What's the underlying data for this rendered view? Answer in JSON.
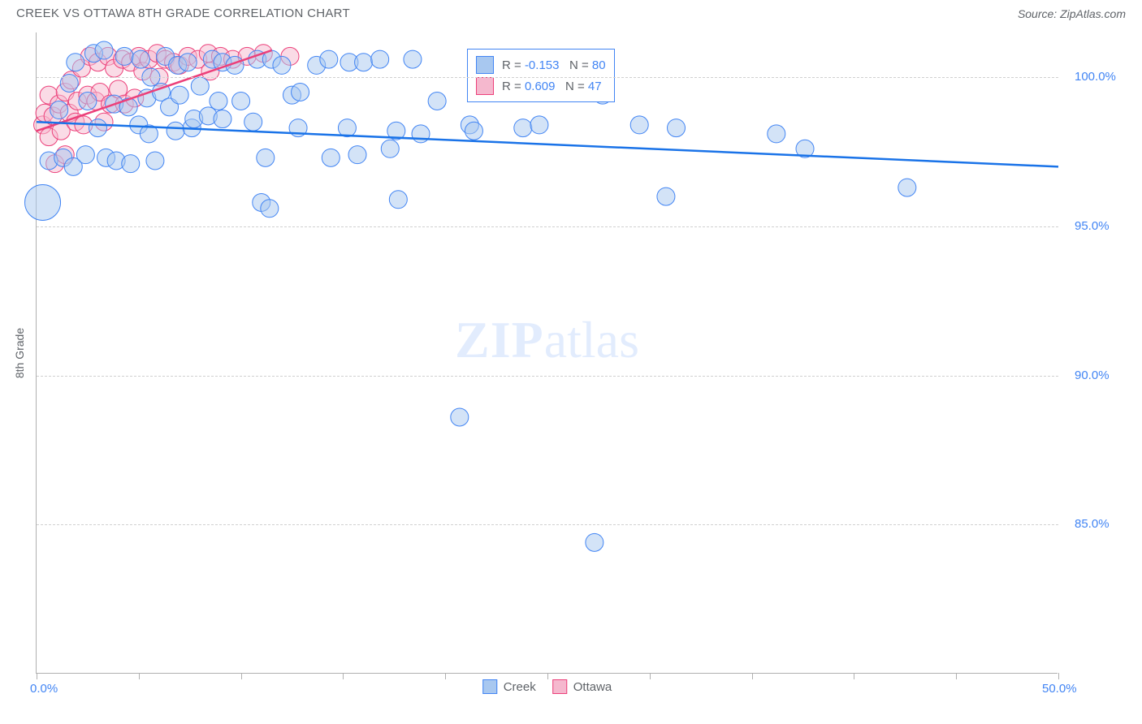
{
  "header": {
    "title": "CREEK VS OTTAWA 8TH GRADE CORRELATION CHART",
    "source": "Source: ZipAtlas.com"
  },
  "axes": {
    "y_label": "8th Grade",
    "y_min": 80.0,
    "y_max": 101.5,
    "y_ticks": [
      85.0,
      90.0,
      95.0,
      100.0
    ],
    "y_tick_labels": [
      "85.0%",
      "90.0%",
      "95.0%",
      "100.0%"
    ],
    "x_min": 0.0,
    "x_max": 50.0,
    "x_ticks": [
      0,
      5,
      10,
      15,
      20,
      25,
      30,
      35,
      40,
      45,
      50
    ],
    "x_tick_labels": {
      "0": "0.0%",
      "50": "50.0%"
    }
  },
  "legend_top": {
    "series": [
      {
        "fill": "#a8c8f0",
        "stroke": "#4285f4",
        "r_label": "R = ",
        "r_value": "-0.153",
        "n_label": "N = ",
        "n_value": "80"
      },
      {
        "fill": "#f5b8ce",
        "stroke": "#ec407a",
        "r_label": "R = ",
        "r_value": "0.609",
        "n_label": "N = ",
        "n_value": "47"
      }
    ]
  },
  "legend_bottom": {
    "items": [
      {
        "fill": "#a8c8f0",
        "stroke": "#4285f4",
        "label": "Creek"
      },
      {
        "fill": "#f5b8ce",
        "stroke": "#ec407a",
        "label": "Ottawa"
      }
    ]
  },
  "watermark": {
    "bold": "ZIP",
    "light": "atlas"
  },
  "styling": {
    "background": "#ffffff",
    "grid_color": "#d0d0d0",
    "axis_color": "#b0b0b0",
    "point_opacity": 0.5,
    "trend_line_width": 2.5
  },
  "series": {
    "creek": {
      "color_fill": "#a8c8f0",
      "color_stroke": "#4285f4",
      "trend": {
        "x1": 0.0,
        "y1": 98.5,
        "x2": 50.0,
        "y2": 97.0,
        "color": "#1a73e8"
      },
      "default_radius": 11,
      "points": [
        {
          "x": 0.3,
          "y": 95.8,
          "r": 22
        },
        {
          "x": 0.6,
          "y": 97.2
        },
        {
          "x": 1.1,
          "y": 98.9
        },
        {
          "x": 1.3,
          "y": 97.3
        },
        {
          "x": 1.6,
          "y": 99.8
        },
        {
          "x": 1.8,
          "y": 97.0
        },
        {
          "x": 1.9,
          "y": 100.5
        },
        {
          "x": 2.4,
          "y": 97.4
        },
        {
          "x": 2.5,
          "y": 99.2
        },
        {
          "x": 2.8,
          "y": 100.8
        },
        {
          "x": 3.0,
          "y": 98.3
        },
        {
          "x": 3.3,
          "y": 100.9
        },
        {
          "x": 3.4,
          "y": 97.3
        },
        {
          "x": 3.8,
          "y": 99.1
        },
        {
          "x": 3.9,
          "y": 97.2
        },
        {
          "x": 4.3,
          "y": 100.7
        },
        {
          "x": 4.5,
          "y": 99.0
        },
        {
          "x": 4.6,
          "y": 97.1
        },
        {
          "x": 5.0,
          "y": 98.4
        },
        {
          "x": 5.1,
          "y": 100.6
        },
        {
          "x": 5.4,
          "y": 99.3
        },
        {
          "x": 5.5,
          "y": 98.1
        },
        {
          "x": 5.6,
          "y": 100.0
        },
        {
          "x": 5.8,
          "y": 97.2
        },
        {
          "x": 6.1,
          "y": 99.5
        },
        {
          "x": 6.3,
          "y": 100.7
        },
        {
          "x": 6.5,
          "y": 99.0
        },
        {
          "x": 6.8,
          "y": 98.2
        },
        {
          "x": 6.9,
          "y": 100.4
        },
        {
          "x": 7.0,
          "y": 99.4
        },
        {
          "x": 7.4,
          "y": 100.5
        },
        {
          "x": 7.6,
          "y": 98.3
        },
        {
          "x": 7.7,
          "y": 98.6
        },
        {
          "x": 8.0,
          "y": 99.7
        },
        {
          "x": 8.4,
          "y": 98.7
        },
        {
          "x": 8.6,
          "y": 100.6
        },
        {
          "x": 8.9,
          "y": 99.2
        },
        {
          "x": 9.1,
          "y": 98.6
        },
        {
          "x": 9.1,
          "y": 100.5
        },
        {
          "x": 9.7,
          "y": 100.4
        },
        {
          "x": 10.0,
          "y": 99.2
        },
        {
          "x": 10.6,
          "y": 98.5
        },
        {
          "x": 10.8,
          "y": 100.6
        },
        {
          "x": 11.0,
          "y": 95.8
        },
        {
          "x": 11.2,
          "y": 97.3
        },
        {
          "x": 11.4,
          "y": 95.6
        },
        {
          "x": 11.5,
          "y": 100.6
        },
        {
          "x": 12.0,
          "y": 100.4
        },
        {
          "x": 12.5,
          "y": 99.4
        },
        {
          "x": 12.8,
          "y": 98.3
        },
        {
          "x": 12.9,
          "y": 99.5
        },
        {
          "x": 13.7,
          "y": 100.4
        },
        {
          "x": 14.3,
          "y": 100.6
        },
        {
          "x": 14.4,
          "y": 97.3
        },
        {
          "x": 15.2,
          "y": 98.3
        },
        {
          "x": 15.3,
          "y": 100.5
        },
        {
          "x": 15.7,
          "y": 97.4
        },
        {
          "x": 16.0,
          "y": 100.5
        },
        {
          "x": 16.8,
          "y": 100.6
        },
        {
          "x": 17.3,
          "y": 97.6
        },
        {
          "x": 17.6,
          "y": 98.2
        },
        {
          "x": 17.7,
          "y": 95.9
        },
        {
          "x": 18.4,
          "y": 100.6
        },
        {
          "x": 18.8,
          "y": 98.1
        },
        {
          "x": 19.6,
          "y": 99.2
        },
        {
          "x": 20.7,
          "y": 88.6
        },
        {
          "x": 21.2,
          "y": 98.4
        },
        {
          "x": 21.4,
          "y": 98.2
        },
        {
          "x": 22.7,
          "y": 100.4
        },
        {
          "x": 23.8,
          "y": 98.3
        },
        {
          "x": 24.6,
          "y": 98.4
        },
        {
          "x": 25.8,
          "y": 100.5
        },
        {
          "x": 27.3,
          "y": 84.4
        },
        {
          "x": 27.7,
          "y": 99.4
        },
        {
          "x": 29.5,
          "y": 98.4
        },
        {
          "x": 30.8,
          "y": 96.0
        },
        {
          "x": 31.3,
          "y": 98.3
        },
        {
          "x": 36.2,
          "y": 98.1
        },
        {
          "x": 37.6,
          "y": 97.6
        },
        {
          "x": 42.6,
          "y": 96.3
        }
      ]
    },
    "ottawa": {
      "color_fill": "#f5b8ce",
      "color_stroke": "#ec407a",
      "trend": {
        "x1": 0.0,
        "y1": 98.2,
        "x2": 11.5,
        "y2": 100.9,
        "color": "#ec407a"
      },
      "default_radius": 11,
      "points": [
        {
          "x": 0.3,
          "y": 98.4
        },
        {
          "x": 0.4,
          "y": 98.8
        },
        {
          "x": 0.6,
          "y": 98.0
        },
        {
          "x": 0.6,
          "y": 99.4
        },
        {
          "x": 0.8,
          "y": 98.7
        },
        {
          "x": 0.9,
          "y": 97.1
        },
        {
          "x": 1.1,
          "y": 99.1
        },
        {
          "x": 1.2,
          "y": 98.2
        },
        {
          "x": 1.4,
          "y": 99.5
        },
        {
          "x": 1.4,
          "y": 97.4
        },
        {
          "x": 1.6,
          "y": 98.8
        },
        {
          "x": 1.7,
          "y": 99.9
        },
        {
          "x": 1.9,
          "y": 98.5
        },
        {
          "x": 2.0,
          "y": 99.2
        },
        {
          "x": 2.2,
          "y": 100.3
        },
        {
          "x": 2.3,
          "y": 98.4
        },
        {
          "x": 2.5,
          "y": 99.4
        },
        {
          "x": 2.6,
          "y": 100.7
        },
        {
          "x": 2.9,
          "y": 99.2
        },
        {
          "x": 3.0,
          "y": 100.5
        },
        {
          "x": 3.1,
          "y": 99.5
        },
        {
          "x": 3.3,
          "y": 98.5
        },
        {
          "x": 3.5,
          "y": 100.7
        },
        {
          "x": 3.6,
          "y": 99.1
        },
        {
          "x": 3.8,
          "y": 100.3
        },
        {
          "x": 4.0,
          "y": 99.6
        },
        {
          "x": 4.2,
          "y": 100.6
        },
        {
          "x": 4.3,
          "y": 99.1
        },
        {
          "x": 4.6,
          "y": 100.5
        },
        {
          "x": 4.8,
          "y": 99.3
        },
        {
          "x": 5.0,
          "y": 100.7
        },
        {
          "x": 5.2,
          "y": 100.2
        },
        {
          "x": 5.5,
          "y": 100.6
        },
        {
          "x": 5.9,
          "y": 100.8
        },
        {
          "x": 6.0,
          "y": 100.0
        },
        {
          "x": 6.3,
          "y": 100.6
        },
        {
          "x": 6.7,
          "y": 100.5
        },
        {
          "x": 7.0,
          "y": 100.4
        },
        {
          "x": 7.4,
          "y": 100.7
        },
        {
          "x": 7.9,
          "y": 100.6
        },
        {
          "x": 8.4,
          "y": 100.8
        },
        {
          "x": 8.5,
          "y": 100.2
        },
        {
          "x": 9.0,
          "y": 100.7
        },
        {
          "x": 9.6,
          "y": 100.6
        },
        {
          "x": 10.3,
          "y": 100.7
        },
        {
          "x": 11.1,
          "y": 100.8
        },
        {
          "x": 12.4,
          "y": 100.7
        }
      ]
    }
  }
}
